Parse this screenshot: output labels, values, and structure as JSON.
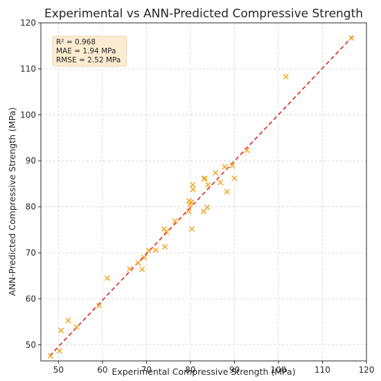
{
  "chart_data": {
    "type": "scatter",
    "title": "Experimental vs ANN-Predicted Compressive Strength",
    "xlabel": "Experimental Compressive Strength (MPa)",
    "ylabel": "ANN-Predicted Compressive Strength (MPa)",
    "xlim": [
      46,
      120
    ],
    "ylim": [
      46.5,
      120
    ],
    "xticks": [
      50,
      60,
      70,
      80,
      90,
      100,
      110,
      120
    ],
    "yticks": [
      50,
      60,
      70,
      80,
      90,
      100,
      110,
      120
    ],
    "grid": true,
    "marker_color": "#F5A623",
    "fit_line_color": "#E0201B",
    "stats_box_color": "#FBEBD0",
    "fit_line": {
      "x": [
        48,
        117
      ],
      "y": [
        47.6,
        117.2
      ]
    },
    "stats": [
      "R² = 0.968",
      "MAE = 1.94 MPa",
      "RMSE = 2.52 MPa"
    ],
    "points": [
      [
        48.2,
        47.6
      ],
      [
        50.2,
        48.7
      ],
      [
        50.6,
        53.1
      ],
      [
        52.2,
        55.3
      ],
      [
        54.1,
        53.9
      ],
      [
        59.2,
        58.5
      ],
      [
        61.1,
        64.5
      ],
      [
        66.2,
        66.5
      ],
      [
        68.1,
        67.8
      ],
      [
        69.0,
        66.4
      ],
      [
        69.5,
        69.0
      ],
      [
        70.5,
        70.5
      ],
      [
        72.1,
        70.6
      ],
      [
        74.0,
        75.2
      ],
      [
        74.2,
        71.3
      ],
      [
        74.5,
        74.6
      ],
      [
        76.5,
        76.9
      ],
      [
        79.6,
        79.0
      ],
      [
        79.7,
        81.3
      ],
      [
        79.9,
        80.5
      ],
      [
        80.2,
        81.0
      ],
      [
        80.5,
        84.8
      ],
      [
        80.6,
        83.8
      ],
      [
        80.3,
        75.2
      ],
      [
        83.0,
        79.0
      ],
      [
        83.1,
        86.1
      ],
      [
        83.3,
        86.2
      ],
      [
        83.8,
        79.9
      ],
      [
        84.0,
        84.8
      ],
      [
        85.7,
        87.4
      ],
      [
        86.8,
        85.3
      ],
      [
        87.8,
        88.7
      ],
      [
        88.3,
        83.3
      ],
      [
        89.5,
        89.0
      ],
      [
        90.0,
        86.2
      ],
      [
        92.8,
        92.3
      ],
      [
        101.7,
        108.3
      ],
      [
        116.6,
        116.7
      ]
    ]
  }
}
